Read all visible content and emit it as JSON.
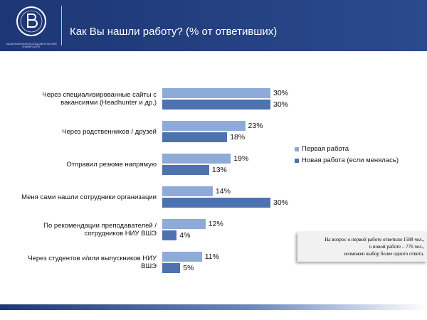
{
  "header": {
    "title": "Как Вы нашли работу? (% от ответивших)",
    "logo_caption": "НАЦИОНАЛЬНЫЙ ИССЛЕДОВАТЕЛЬСКИЙ УНИВЕРСИТЕТ"
  },
  "chart_data": {
    "type": "hbar",
    "categories": [
      "Через специализированные сайты с вакансиями (Headhunter и др.)",
      "Через родственников / друзей",
      "Отправил резюме напрямую",
      "Меня сами нашли сотрудники организации",
      "По рекомендации преподавателей / сотрудников НИУ ВШЭ",
      "Через студентов и/или выпускников НИУ ВШЭ"
    ],
    "series": [
      {
        "name": "Первая работа",
        "color": "#8eaad8",
        "values": [
          30,
          23,
          19,
          14,
          12,
          11
        ],
        "value_labels": [
          "30%",
          "23%",
          "19%",
          "14%",
          "12%",
          "11%"
        ]
      },
      {
        "name": "Новая работа (если менялась)",
        "color": "#4e72b0",
        "values": [
          30,
          18,
          13,
          30,
          4,
          5
        ],
        "value_labels": [
          "30%",
          "18%",
          "13%",
          "30%",
          "4%",
          "5%"
        ]
      }
    ],
    "xlim": [
      0,
      30
    ],
    "legend": "right"
  },
  "note": {
    "lines": [
      "На вопрос о первой работе ответили 1588 чел.,",
      "о новой работе – 776 чел.,",
      "возможен выбор более одного ответа."
    ]
  }
}
